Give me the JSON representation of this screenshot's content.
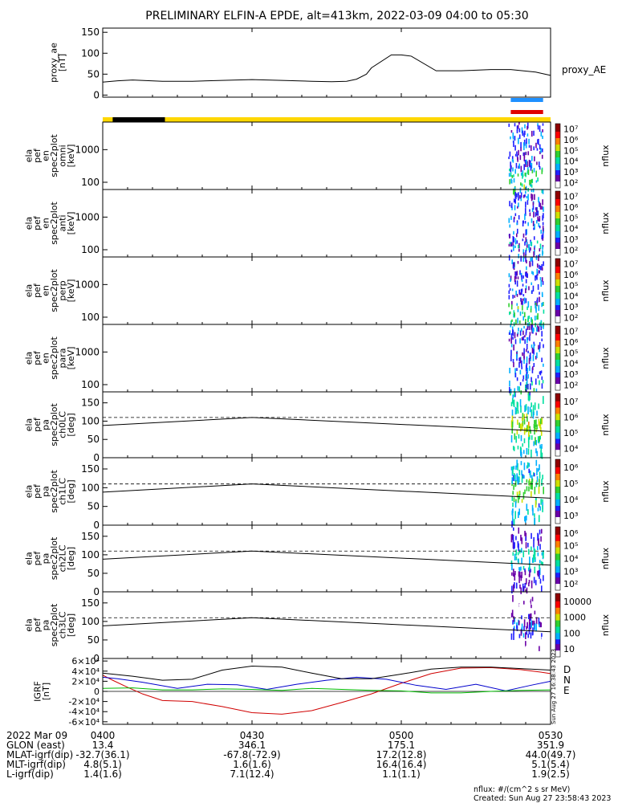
{
  "title": "PRELIMINARY ELFIN-A EPDE, alt=413km, 2022-03-09 04:00 to 05:30",
  "colors": {
    "foreground": "#000000",
    "background": "#ffffff",
    "science_bar": "#ffd700",
    "sun_bar": "#000000",
    "zone_blue": "#1e90ff",
    "zone_red": "#e00000",
    "igrf_d": "#d00000",
    "igrf_n": "#0000cc",
    "igrf_e": "#00bb00",
    "colorbar": [
      "#ffffff",
      "#6a00a8",
      "#2020ff",
      "#00b0ff",
      "#00e0a0",
      "#30d030",
      "#d0e000",
      "#ff8000",
      "#ff0000",
      "#900000"
    ]
  },
  "chart_data": [
    {
      "type": "line",
      "panel": "proxy_ae",
      "ylabel": "proxy_ae\n[nT]",
      "legend": [
        "proxy_AE"
      ],
      "ylim": [
        -5,
        160
      ],
      "yticks": [
        "0",
        "50",
        "100",
        "150"
      ],
      "x_minutes": [
        0,
        3,
        6,
        12,
        18,
        24,
        30,
        36,
        42,
        46,
        49,
        51,
        53,
        54,
        58,
        60,
        62,
        67,
        72,
        78,
        82,
        87,
        90
      ],
      "values": [
        31,
        34,
        36,
        33,
        33,
        35,
        37,
        35,
        33,
        32,
        33,
        38,
        50,
        65,
        96,
        96,
        93,
        58,
        58,
        61,
        61,
        55,
        47
      ]
    },
    {
      "type": "heatmap",
      "panel": "ela pef en spec2plot omni",
      "ylabel": "ela\npef\nen\nspec2plot\nomni\n[keV]",
      "yscale": "log",
      "yticks": [
        "100",
        "1000"
      ],
      "colorbar_label": "nflux",
      "colorbar_ticks": [
        "10²",
        "10³",
        "10⁴",
        "10⁵",
        "10⁶",
        "10⁷"
      ],
      "active_interval_minutes": [
        81.5,
        88.5
      ],
      "peak_energy_keV": [
        60,
        300
      ],
      "peak_nflux": 100000
    },
    {
      "type": "heatmap",
      "panel": "ela pef en spec2plot anti",
      "ylabel": "ela\npef\nen\nspec2plot\nanti\n[keV]",
      "yscale": "log",
      "yticks": [
        "100",
        "1000"
      ],
      "colorbar_label": "nflux",
      "colorbar_ticks": [
        "10²",
        "10³",
        "10⁴",
        "10⁵",
        "10⁶",
        "10⁷"
      ],
      "active_interval_minutes": [
        81.5,
        88.5
      ],
      "peak_energy_keV": [
        60,
        200
      ],
      "peak_nflux": 10000
    },
    {
      "type": "heatmap",
      "panel": "ela pef en spec2plot perp",
      "ylabel": "ela\npef\nen\nspec2plot\nperp\n[keV]",
      "yscale": "log",
      "yticks": [
        "100",
        "1000"
      ],
      "colorbar_label": "nflux",
      "colorbar_ticks": [
        "10²",
        "10³",
        "10⁴",
        "10⁵",
        "10⁶",
        "10⁷"
      ],
      "active_interval_minutes": [
        81.5,
        88.5
      ],
      "peak_energy_keV": [
        60,
        300
      ],
      "peak_nflux": 100000
    },
    {
      "type": "heatmap",
      "panel": "ela pef en spec2plot para",
      "ylabel": "ela\npef\nen\nspec2plot\npara\n[keV]",
      "yscale": "log",
      "yticks": [
        "100",
        "1000"
      ],
      "colorbar_label": "nflux",
      "colorbar_ticks": [
        "10²",
        "10³",
        "10⁴",
        "10⁵",
        "10⁶",
        "10⁷"
      ],
      "active_interval_minutes": [
        81.5,
        88.5
      ],
      "peak_energy_keV": [
        60,
        150
      ],
      "peak_nflux": 30000
    },
    {
      "type": "heatmap",
      "panel": "ela pef pa spec2plot ch0LC",
      "ylabel": "ela\npef\npa\nspec2plot\nch0LC\n[deg]",
      "ylim": [
        0,
        180
      ],
      "yticks": [
        "0",
        "50",
        "100",
        "150"
      ],
      "colorbar_label": "nflux",
      "colorbar_ticks": [
        "10⁴",
        "10⁵",
        "10⁶",
        "10⁷"
      ],
      "loss_cone_deg": [
        88,
        110,
        72
      ],
      "dashed_line_deg": 110,
      "active_interval_minutes": [
        82,
        88.5
      ],
      "peak_nflux": 300000
    },
    {
      "type": "heatmap",
      "panel": "ela pef pa spec2plot ch1LC",
      "ylabel": "ela\npef\npa\nspec2plot\nch1LC\n[deg]",
      "ylim": [
        0,
        180
      ],
      "yticks": [
        "0",
        "50",
        "100",
        "150"
      ],
      "colorbar_label": "nflux",
      "colorbar_ticks": [
        "10³",
        "10⁴",
        "10⁵",
        "10⁶"
      ],
      "loss_cone_deg": [
        88,
        110,
        72
      ],
      "dashed_line_deg": 110,
      "active_interval_minutes": [
        82,
        88.5
      ],
      "peak_nflux": 100000
    },
    {
      "type": "heatmap",
      "panel": "ela pef pa spec2plot ch2LC",
      "ylabel": "ela\npef\npa\nspec2plot\nch2LC\n[deg]",
      "ylim": [
        0,
        180
      ],
      "yticks": [
        "0",
        "50",
        "100",
        "150"
      ],
      "colorbar_label": "nflux",
      "colorbar_ticks": [
        "10²",
        "10³",
        "10⁴",
        "10⁵",
        "10⁶"
      ],
      "loss_cone_deg": [
        88,
        110,
        72
      ],
      "dashed_line_deg": 110,
      "active_interval_minutes": [
        82,
        88.5
      ],
      "peak_nflux": 10000
    },
    {
      "type": "heatmap",
      "panel": "ela pef pa spec2plot ch3LC",
      "ylabel": "ela\npef\npa\nspec2plot\nch3LC\n[deg]",
      "ylim": [
        0,
        180
      ],
      "yticks": [
        "0",
        "50",
        "100",
        "150"
      ],
      "colorbar_label": "nflux",
      "colorbar_ticks": [
        "10",
        "100",
        "1000",
        "10000"
      ],
      "loss_cone_deg": [
        88,
        110,
        72
      ],
      "dashed_line_deg": 110,
      "active_interval_minutes": [
        82,
        88.5
      ],
      "peak_nflux": 1000
    },
    {
      "type": "line",
      "panel": "IGRF",
      "ylabel": "IGRF\n[nT]",
      "ylim": [
        -65000,
        65000
      ],
      "yticks": [
        "-6×10⁴",
        "-4×10⁴",
        "-2×10⁴",
        "0",
        "2×10⁴",
        "4×10⁴",
        "6×10⁴"
      ],
      "series": [
        {
          "name": "D",
          "color": "#d00000",
          "x_minutes": [
            0,
            2,
            5,
            8,
            12,
            18,
            24,
            30,
            36,
            42,
            48,
            54,
            60,
            66,
            72,
            78,
            84,
            88,
            90
          ],
          "values": [
            32000,
            22000,
            8000,
            -5000,
            -18000,
            -20000,
            -30000,
            -42000,
            -45000,
            -38000,
            -22000,
            -5000,
            16000,
            35000,
            46000,
            47000,
            43000,
            38000,
            35000
          ]
        },
        {
          "name": "N",
          "color": "#0000cc",
          "x_minutes": [
            0,
            3,
            8,
            15,
            21,
            27,
            33,
            39,
            45,
            51,
            57,
            63,
            69,
            75,
            81,
            86,
            90
          ],
          "values": [
            28000,
            25000,
            18000,
            6000,
            14000,
            13000,
            4000,
            14000,
            22000,
            28000,
            24000,
            12000,
            4000,
            14000,
            1000,
            12000,
            20000
          ]
        },
        {
          "name": "E",
          "color": "#00bb00",
          "x_minutes": [
            0,
            6,
            12,
            18,
            24,
            30,
            36,
            42,
            48,
            54,
            60,
            66,
            72,
            78,
            84,
            90
          ],
          "values": [
            6000,
            7000,
            3000,
            3000,
            5000,
            4000,
            2000,
            6000,
            4000,
            2000,
            1000,
            -3000,
            -3000,
            0,
            2000,
            3000
          ]
        },
        {
          "name": "",
          "color": "#000000",
          "x_minutes": [
            0,
            6,
            12,
            18,
            24,
            30,
            36,
            42,
            48,
            54,
            60,
            66,
            72,
            78,
            84,
            90
          ],
          "values": [
            36000,
            30000,
            22000,
            24000,
            42000,
            50000,
            48000,
            36000,
            25000,
            25000,
            34000,
            44000,
            48000,
            48000,
            45000,
            42000
          ]
        }
      ]
    }
  ],
  "science_bar": {
    "sun_segment_minutes": [
      2,
      12.5
    ]
  },
  "zone_bars": {
    "blue_minutes": [
      82,
      88.5
    ],
    "red_minutes": [
      82,
      88.5
    ]
  },
  "timestamp": "Sun Aug 27 16:38:43 2023",
  "footer": {
    "rows": [
      {
        "label": "2022 Mar 09",
        "values": [
          "0400",
          "0430",
          "0500",
          "0530"
        ]
      },
      {
        "label": "GLON (east)",
        "values": [
          "13.4",
          "346.1",
          "175.1",
          "351.9"
        ]
      },
      {
        "label": "MLAT-igrf(dip)",
        "values": [
          "-32.7(36.1)",
          "-67.8(-72.9)",
          "17.2(12.8)",
          "44.0(49.7)"
        ]
      },
      {
        "label": "MLT-igrf(dip)",
        "values": [
          "4.8(5.1)",
          "1.6(1.6)",
          "16.4(16.4)",
          "5.1(5.4)"
        ]
      },
      {
        "label": "L-igrf(dip)",
        "values": [
          "1.4(1.6)",
          "7.1(12.4)",
          "1.1(1.1)",
          "1.9(2.5)"
        ]
      }
    ],
    "units_note": "nflux: #/(cm^2 s sr MeV)",
    "created": "Created: Sun Aug 27 23:58:43 2023"
  }
}
